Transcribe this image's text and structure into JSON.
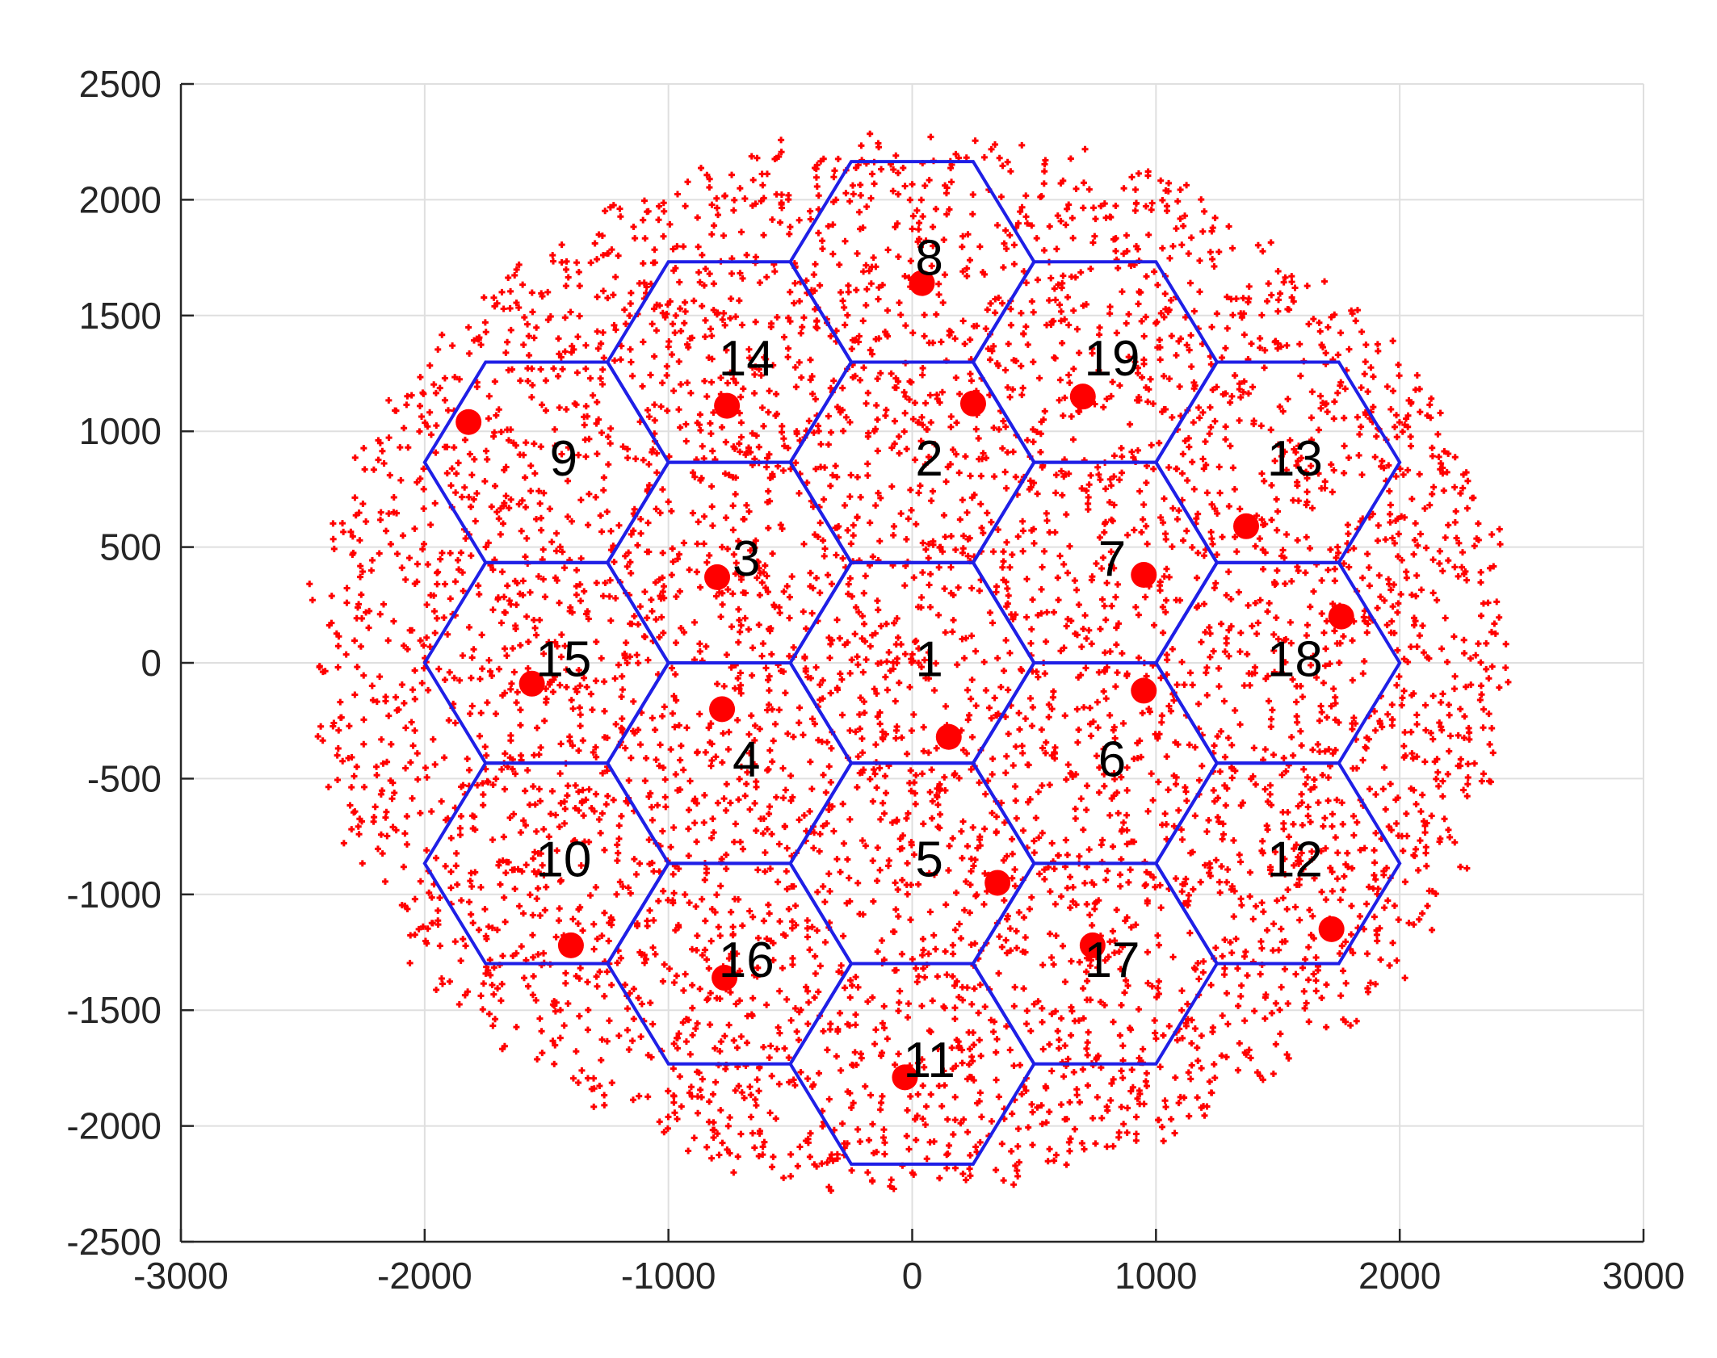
{
  "chart_data": {
    "type": "scatter",
    "title": "",
    "xlabel": "",
    "ylabel": "",
    "xlim": [
      -3000,
      3000
    ],
    "ylim": [
      -2500,
      2500
    ],
    "xticks": [
      -3000,
      -2000,
      -1000,
      0,
      1000,
      2000,
      3000
    ],
    "yticks": [
      -2500,
      -2000,
      -1500,
      -1000,
      -500,
      0,
      500,
      1000,
      1500,
      2000,
      2500
    ],
    "xtick_labels": [
      "-3000",
      "-2000",
      "-1000",
      "0",
      "1000",
      "2000",
      "3000"
    ],
    "ytick_labels": [
      "-2500",
      "-2000",
      "-1500",
      "-1000",
      "-500",
      "0",
      "500",
      "1000",
      "1500",
      "2000",
      "2500"
    ],
    "grid": true,
    "hexagon_radius": 500,
    "hexagon_color": "#1f1fe6",
    "point_color": "#ff0000",
    "cells": [
      {
        "label": "1",
        "center": [
          0,
          0
        ],
        "label_pos": [
          70,
          0
        ]
      },
      {
        "label": "2",
        "center": [
          0,
          866
        ],
        "label_pos": [
          70,
          866
        ]
      },
      {
        "label": "3",
        "center": [
          -750,
          433
        ],
        "label_pos": [
          -680,
          433
        ]
      },
      {
        "label": "4",
        "center": [
          -750,
          -433
        ],
        "label_pos": [
          -680,
          -433
        ]
      },
      {
        "label": "5",
        "center": [
          0,
          -866
        ],
        "label_pos": [
          70,
          -866
        ]
      },
      {
        "label": "6",
        "center": [
          750,
          -433
        ],
        "label_pos": [
          820,
          -433
        ]
      },
      {
        "label": "7",
        "center": [
          750,
          433
        ],
        "label_pos": [
          820,
          433
        ]
      },
      {
        "label": "8",
        "center": [
          0,
          1732
        ],
        "label_pos": [
          70,
          1732
        ]
      },
      {
        "label": "9",
        "center": [
          -1500,
          866
        ],
        "label_pos": [
          -1430,
          866
        ]
      },
      {
        "label": "10",
        "center": [
          -1500,
          -866
        ],
        "label_pos": [
          -1430,
          -866
        ]
      },
      {
        "label": "11",
        "center": [
          0,
          -1732
        ],
        "label_pos": [
          70,
          -1732
        ]
      },
      {
        "label": "12",
        "center": [
          1500,
          -866
        ],
        "label_pos": [
          1570,
          -866
        ]
      },
      {
        "label": "13",
        "center": [
          1500,
          866
        ],
        "label_pos": [
          1570,
          866
        ]
      },
      {
        "label": "14",
        "center": [
          -750,
          1299
        ],
        "label_pos": [
          -680,
          1299
        ]
      },
      {
        "label": "15",
        "center": [
          -1500,
          0
        ],
        "label_pos": [
          -1430,
          0
        ]
      },
      {
        "label": "16",
        "center": [
          -750,
          -1299
        ],
        "label_pos": [
          -680,
          -1299
        ]
      },
      {
        "label": "17",
        "center": [
          750,
          -1299
        ],
        "label_pos": [
          820,
          -1299
        ]
      },
      {
        "label": "18",
        "center": [
          1500,
          0
        ],
        "label_pos": [
          1570,
          0
        ]
      },
      {
        "label": "19",
        "center": [
          750,
          1299
        ],
        "label_pos": [
          820,
          1299
        ]
      }
    ],
    "base_stations": [
      [
        150,
        -320
      ],
      [
        250,
        1120
      ],
      [
        -800,
        370
      ],
      [
        -780,
        -200
      ],
      [
        350,
        -950
      ],
      [
        950,
        -120
      ],
      [
        950,
        380
      ],
      [
        40,
        1640
      ],
      [
        -1820,
        1040
      ],
      [
        -1400,
        -1220
      ],
      [
        -30,
        -1790
      ],
      [
        1720,
        -1150
      ],
      [
        1370,
        590
      ],
      [
        -760,
        1110
      ],
      [
        -1560,
        -90
      ],
      [
        -770,
        -1360
      ],
      [
        740,
        -1220
      ],
      [
        1760,
        200
      ],
      [
        700,
        1150
      ]
    ],
    "users": {
      "description_count": 5000,
      "region_radius": 2500,
      "seed": 7
    }
  }
}
